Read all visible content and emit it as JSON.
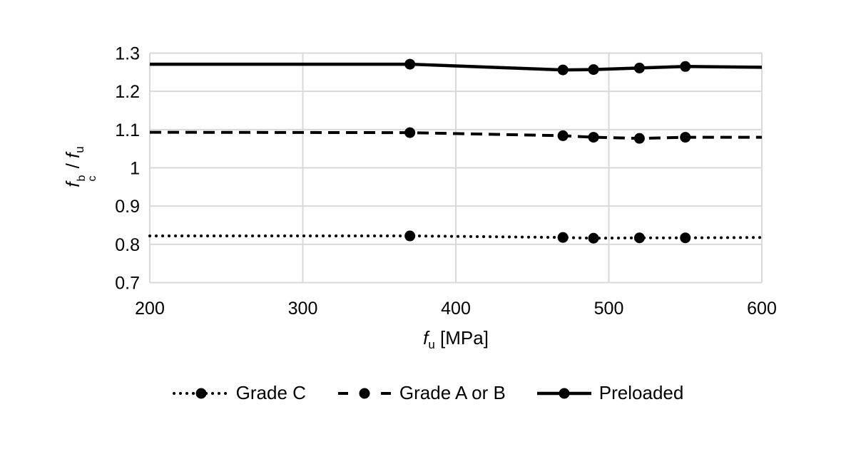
{
  "chart_data": {
    "type": "line",
    "title": "",
    "x": [
      200,
      370,
      470,
      490,
      520,
      550,
      600
    ],
    "marker_x": [
      370,
      470,
      490,
      520,
      550
    ],
    "series": [
      {
        "name": "Grade C",
        "line_style": "dotted",
        "values": [
          0.822,
          0.822,
          0.818,
          0.816,
          0.817,
          0.817,
          0.818
        ]
      },
      {
        "name": "Grade A or B",
        "line_style": "dashed",
        "values": [
          1.093,
          1.092,
          1.084,
          1.08,
          1.077,
          1.08,
          1.08
        ]
      },
      {
        "name": "Preloaded",
        "line_style": "solid",
        "values": [
          1.271,
          1.271,
          1.256,
          1.257,
          1.261,
          1.265,
          1.263
        ]
      }
    ],
    "x_ticks": [
      200,
      300,
      400,
      500,
      600
    ],
    "y_ticks": [
      0.7,
      0.8,
      0.9,
      1,
      1.1,
      1.2,
      1.3
    ],
    "xlim": [
      200,
      600
    ],
    "ylim": [
      0.7,
      1.3
    ],
    "grid": true,
    "legend_position": "bottom",
    "x_axis_title": {
      "symbol": "f",
      "subscript": "u",
      "unit": " [MPa]"
    },
    "y_axis_title": {
      "symbol1": "f",
      "superscript1": "b",
      "subscript1": "c",
      "separator": " / ",
      "symbol2": "f",
      "subscript2": "u"
    },
    "colors": {
      "series": "#000000",
      "gridline": "#d9d9d9",
      "text": "#000000",
      "background": "#ffffff"
    }
  }
}
